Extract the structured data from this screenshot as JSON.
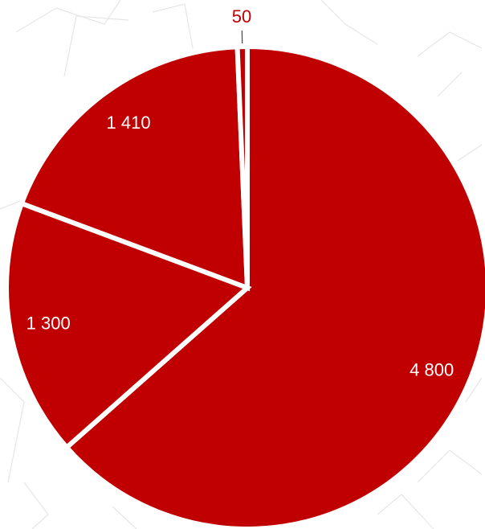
{
  "chart_data": {
    "type": "pie",
    "title": "",
    "categories": [
      "",
      "",
      "",
      ""
    ],
    "values": [
      4800,
      1300,
      1410,
      50
    ],
    "labels": [
      "4 800",
      "1 300",
      "1 410",
      "50"
    ],
    "start_angle_deg": 0,
    "direction": "clockwise",
    "legend": "none",
    "colors": {
      "slice": "#c00000",
      "separator": "#ffffff",
      "label_inside": "#ffffff",
      "label_outside": "#c00000",
      "leader_line": "#444444",
      "background_lines": "#e6e6e6"
    }
  }
}
